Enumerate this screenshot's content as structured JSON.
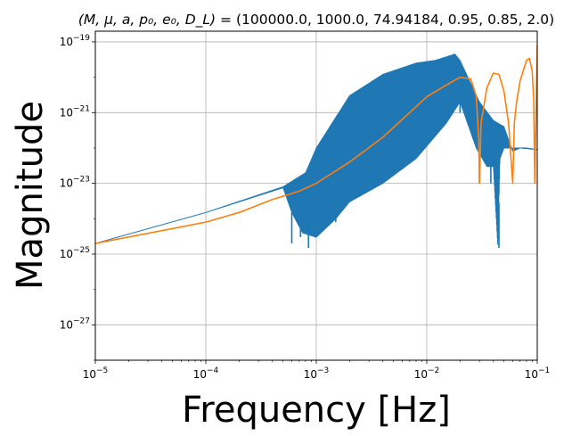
{
  "chart_data": {
    "type": "line",
    "title": "(M, μ, a, p₀, e₀, D_L) = (100000.0, 1000.0, 74.94184, 0.95, 0.85, 2.0)",
    "title_parts": {
      "symbols": "(M, μ, a, p₀, e₀, D_L)",
      "equals": " = ",
      "values": "(100000.0, 1000.0, 74.94184, 0.95, 0.85, 2.0)"
    },
    "xlabel": "Frequency [Hz]",
    "ylabel": "Magnitude",
    "xscale": "log",
    "yscale": "log",
    "xlim": [
      1e-05,
      0.1
    ],
    "ylim": [
      1e-28,
      2e-19
    ],
    "grid": true,
    "x_ticks": [
      {
        "base": "10",
        "exp": "−5"
      },
      {
        "base": "10",
        "exp": "−4"
      },
      {
        "base": "10",
        "exp": "−3"
      },
      {
        "base": "10",
        "exp": "−2"
      },
      {
        "base": "10",
        "exp": "−1"
      }
    ],
    "y_ticks": [
      {
        "base": "10",
        "exp": "−19"
      },
      {
        "base": "10",
        "exp": "−21"
      },
      {
        "base": "10",
        "exp": "−23"
      },
      {
        "base": "10",
        "exp": "−25"
      },
      {
        "base": "10",
        "exp": "−27"
      }
    ],
    "series": [
      {
        "color": "#1f77b4",
        "style": "oscillating band",
        "upper_envelope": [
          [
            1e-05,
            2e-25
          ],
          [
            0.0001,
            1.5e-24
          ],
          [
            0.0005,
            8e-24
          ],
          [
            0.0008,
            2e-23
          ],
          [
            0.001,
            1e-22
          ],
          [
            0.002,
            3e-21
          ],
          [
            0.004,
            1.2e-20
          ],
          [
            0.008,
            2.5e-20
          ],
          [
            0.012,
            3e-20
          ],
          [
            0.018,
            4.5e-20
          ],
          [
            0.02,
            3e-20
          ],
          [
            0.03,
            2e-21
          ],
          [
            0.04,
            6e-22
          ],
          [
            0.05,
            4e-22
          ],
          [
            0.06,
            8e-23
          ],
          [
            0.07,
            1e-22
          ],
          [
            0.08,
            1e-22
          ],
          [
            0.1,
            9e-23
          ]
        ],
        "lower_envelope": [
          [
            1e-05,
            2e-25
          ],
          [
            0.0001,
            1.5e-24
          ],
          [
            0.0005,
            7.5e-24
          ],
          [
            0.0006,
            1.5e-24
          ],
          [
            0.00075,
            4e-25
          ],
          [
            0.001,
            3e-25
          ],
          [
            0.0015,
            1e-24
          ],
          [
            0.002,
            3e-24
          ],
          [
            0.004,
            1e-23
          ],
          [
            0.008,
            5e-23
          ],
          [
            0.015,
            5e-22
          ],
          [
            0.02,
            2e-21
          ],
          [
            0.028,
            1e-22
          ],
          [
            0.035,
            3e-23
          ],
          [
            0.04,
            3e-23
          ],
          [
            0.044,
            1.5e-25
          ],
          [
            0.046,
            5e-23
          ],
          [
            0.05,
            1e-22
          ],
          [
            0.07,
            1e-22
          ],
          [
            0.1,
            9e-23
          ]
        ],
        "dips": [
          [
            0.0006,
            2e-25
          ],
          [
            0.00072,
            3e-25
          ],
          [
            0.00085,
            1.5e-25
          ],
          [
            0.0011,
            5e-25
          ],
          [
            0.0015,
            8e-25
          ],
          [
            0.02,
            1e-21
          ],
          [
            0.03,
            1e-23
          ],
          [
            0.038,
            1e-23
          ],
          [
            0.045,
            1.5e-25
          ]
        ]
      },
      {
        "color": "#ff7f0e",
        "style": "smooth line",
        "x": [
          1e-05,
          0.0001,
          0.0002,
          0.0004,
          0.0007,
          0.001,
          0.002,
          0.004,
          0.007,
          0.01,
          0.015,
          0.02,
          0.025,
          0.028,
          0.0295,
          0.03,
          0.031,
          0.035,
          0.04,
          0.045,
          0.05,
          0.055,
          0.06,
          0.062,
          0.065,
          0.07,
          0.08,
          0.085,
          0.09,
          0.093,
          0.095,
          0.1
        ],
        "y": [
          2e-25,
          8e-25,
          1.5e-24,
          3.5e-24,
          6e-24,
          1e-23,
          4e-23,
          2e-22,
          1e-21,
          2.8e-21,
          6e-21,
          1e-20,
          9e-21,
          3e-21,
          2e-22,
          1e-23,
          5e-22,
          5e-21,
          1.3e-20,
          1.2e-20,
          4e-21,
          5e-22,
          1e-23,
          5e-22,
          2e-21,
          8e-21,
          3e-20,
          3.4e-20,
          1.5e-20,
          2e-21,
          1e-23,
          8e-20
        ]
      }
    ]
  }
}
